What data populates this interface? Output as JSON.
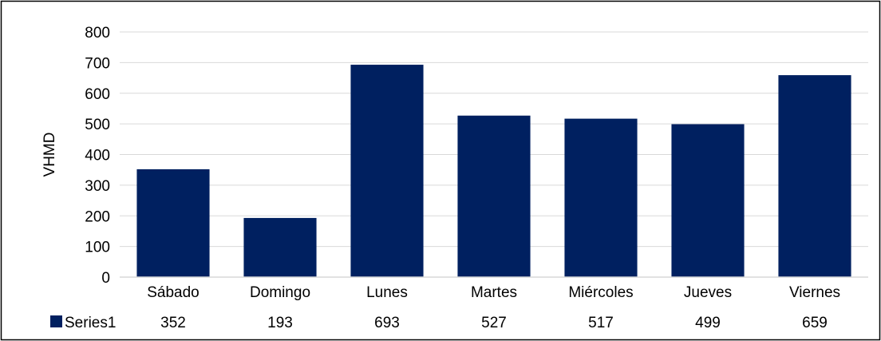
{
  "chart_data": {
    "type": "bar",
    "title": "",
    "xlabel": "",
    "ylabel": "VHMD",
    "ylim": [
      0,
      800
    ],
    "yticks": [
      0,
      100,
      200,
      300,
      400,
      500,
      600,
      700,
      800
    ],
    "grid": true,
    "legend": "data-table",
    "categories": [
      "Sábado",
      "Domingo",
      "Lunes",
      "Martes",
      "Miércoles",
      "Jueves",
      "Viernes"
    ],
    "series": [
      {
        "name": "Series1",
        "values": [
          352,
          193,
          693,
          527,
          517,
          499,
          659
        ],
        "color": "#002060"
      }
    ],
    "colors": {
      "gridline": "#d9d9d9",
      "border": "#000000"
    }
  }
}
